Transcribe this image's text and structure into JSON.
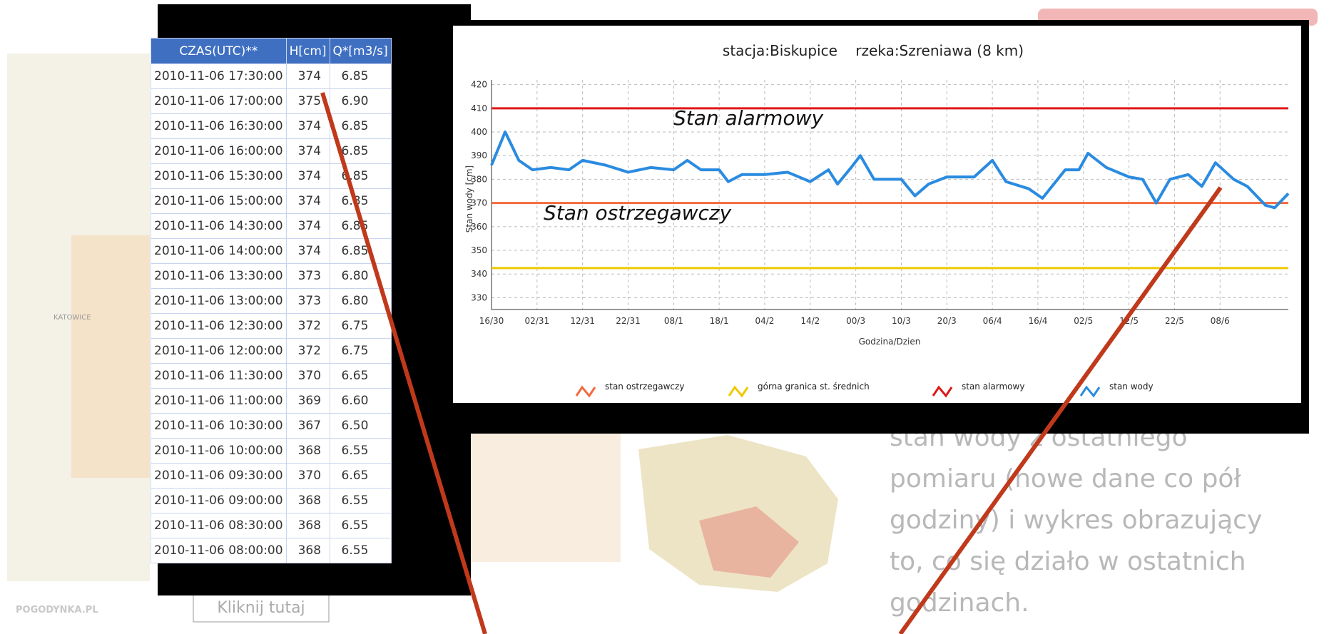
{
  "table": {
    "headers": [
      "CZAS(UTC)**",
      "H[cm]",
      "Q*[m3/s]"
    ],
    "rows": [
      [
        "2010-11-06 17:30:00",
        "374",
        "6.85"
      ],
      [
        "2010-11-06 17:00:00",
        "375",
        "6.90"
      ],
      [
        "2010-11-06 16:30:00",
        "374",
        "6.85"
      ],
      [
        "2010-11-06 16:00:00",
        "374",
        "6.85"
      ],
      [
        "2010-11-06 15:30:00",
        "374",
        "6.85"
      ],
      [
        "2010-11-06 15:00:00",
        "374",
        "6.85"
      ],
      [
        "2010-11-06 14:30:00",
        "374",
        "6.85"
      ],
      [
        "2010-11-06 14:00:00",
        "374",
        "6.85"
      ],
      [
        "2010-11-06 13:30:00",
        "373",
        "6.80"
      ],
      [
        "2010-11-06 13:00:00",
        "373",
        "6.80"
      ],
      [
        "2010-11-06 12:30:00",
        "372",
        "6.75"
      ],
      [
        "2010-11-06 12:00:00",
        "372",
        "6.75"
      ],
      [
        "2010-11-06 11:30:00",
        "370",
        "6.65"
      ],
      [
        "2010-11-06 11:00:00",
        "369",
        "6.60"
      ],
      [
        "2010-11-06 10:30:00",
        "367",
        "6.50"
      ],
      [
        "2010-11-06 10:00:00",
        "368",
        "6.55"
      ],
      [
        "2010-11-06 09:30:00",
        "370",
        "6.65"
      ],
      [
        "2010-11-06 09:00:00",
        "368",
        "6.55"
      ],
      [
        "2010-11-06 08:30:00",
        "368",
        "6.55"
      ],
      [
        "2010-11-06 08:00:00",
        "368",
        "6.55"
      ]
    ]
  },
  "chart_data": {
    "type": "line",
    "title": "stacja:Biskupice    rzeka:Szreniawa (8 km)",
    "y_label": "Stan wody [cm]",
    "x_label": "Godzina/Dzien",
    "annotations": [
      {
        "text": "Stan alarmowy",
        "value": 403
      },
      {
        "text": "Stan ostrzegawczy",
        "value": 363
      }
    ],
    "ylim": [
      325,
      422
    ],
    "yticks": [
      330,
      340,
      350,
      360,
      370,
      380,
      390,
      400,
      410,
      420
    ],
    "xlim": [
      0,
      17.5
    ],
    "xticks": [
      {
        "value": 0,
        "label": "16/30"
      },
      {
        "value": 1,
        "label": "02/31"
      },
      {
        "value": 2,
        "label": "12/31"
      },
      {
        "value": 3,
        "label": "22/31"
      },
      {
        "value": 4,
        "label": "08/1"
      },
      {
        "value": 5,
        "label": "18/1"
      },
      {
        "value": 6,
        "label": "04/2"
      },
      {
        "value": 7,
        "label": "14/2"
      },
      {
        "value": 8,
        "label": "00/3"
      },
      {
        "value": 9,
        "label": "10/3"
      },
      {
        "value": 10,
        "label": "20/3"
      },
      {
        "value": 11,
        "label": "06/4"
      },
      {
        "value": 12,
        "label": "16/4"
      },
      {
        "value": 13,
        "label": "02/5"
      },
      {
        "value": 14,
        "label": "12/5"
      },
      {
        "value": 15,
        "label": "22/5"
      },
      {
        "value": 16,
        "label": "08/6"
      }
    ],
    "grid": true,
    "series": [
      {
        "name": "stan ostrzegawczy",
        "color": "#f26a3d",
        "level": 370
      },
      {
        "name": "górna granica st. średnich",
        "color": "#f0c800",
        "level": 342.5
      },
      {
        "name": "stan alarmowy",
        "color": "#e01818",
        "level": 410
      },
      {
        "name": "stan wody",
        "color": "#2a8be0",
        "x": [
          0,
          0.3,
          0.6,
          0.9,
          1.3,
          1.7,
          2.0,
          2.5,
          3.0,
          3.5,
          4.0,
          4.3,
          4.6,
          5.0,
          5.2,
          5.5,
          6.0,
          6.5,
          7.0,
          7.4,
          7.6,
          7.9,
          8.1,
          8.4,
          9.0,
          9.3,
          9.6,
          10.0,
          10.6,
          11.0,
          11.3,
          11.8,
          12.1,
          12.6,
          12.9,
          13.1,
          13.5,
          14.0,
          14.3,
          14.6,
          14.9,
          15.3,
          15.6,
          15.9,
          16.3,
          16.6,
          17.0,
          17.2,
          17.5
        ],
        "values": [
          386,
          400,
          388,
          384,
          385,
          384,
          388,
          386,
          383,
          385,
          384,
          388,
          384,
          384,
          379,
          382,
          382,
          383,
          379,
          384,
          378,
          385,
          390,
          380,
          380,
          373,
          378,
          381,
          381,
          388,
          379,
          376,
          372,
          384,
          384,
          391,
          385,
          381,
          380,
          370,
          380,
          382,
          377,
          387,
          380,
          377,
          369,
          368,
          374
        ]
      }
    ]
  },
  "background": {
    "text_lines": [
      "stan wody z ostatniego",
      "pomiaru (nowe dane co pół",
      "godziny) i wykres obrazujący",
      "to, co się działo w ostatnich",
      "godzinach."
    ],
    "button": "Kliknij tutaj",
    "logo": "POGODYNKA.PL",
    "map_label": "KATOWICE"
  }
}
